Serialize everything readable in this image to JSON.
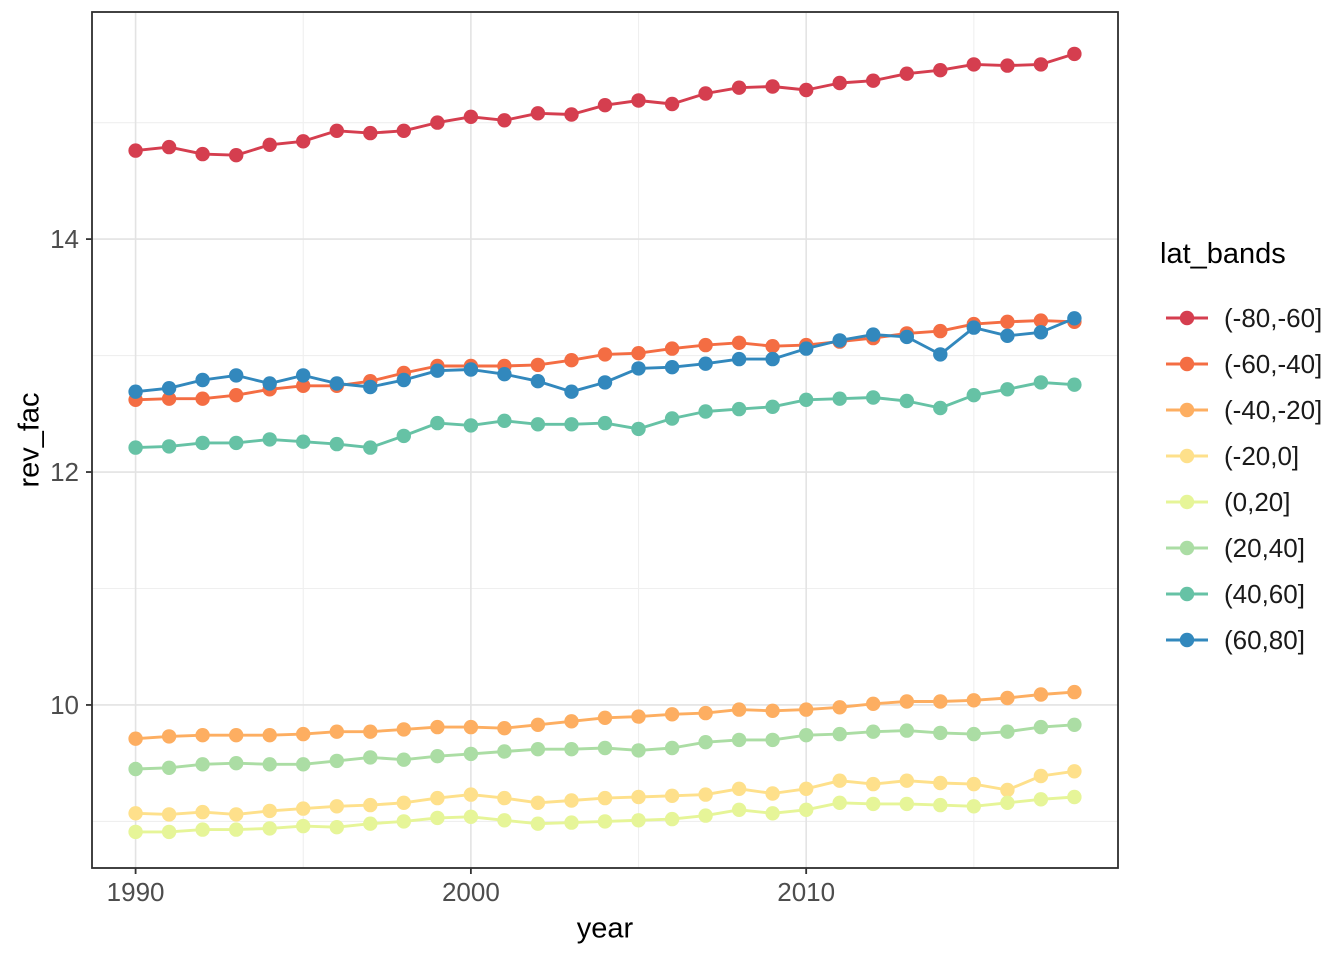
{
  "axes": {
    "x": {
      "title": "year",
      "major_ticks": [
        1990,
        2000,
        2010
      ],
      "minor_ticks": [
        1995,
        2005,
        2015
      ]
    },
    "y": {
      "major_ticks": [
        10,
        12,
        14
      ],
      "minor_ticks": [
        9,
        11,
        13,
        15
      ],
      "title": "rev_fac"
    }
  },
  "chart_data": {
    "type": "line",
    "title": "",
    "xlabel": "year",
    "ylabel": "rev_fac",
    "legend_title": "lat_bands",
    "legend_position": "right",
    "grid": true,
    "xlim": [
      1988.7,
      2019.3
    ],
    "ylim": [
      8.6,
      15.95
    ],
    "x": [
      1990,
      1991,
      1992,
      1993,
      1994,
      1995,
      1996,
      1997,
      1998,
      1999,
      2000,
      2001,
      2002,
      2003,
      2004,
      2005,
      2006,
      2007,
      2008,
      2009,
      2010,
      2011,
      2012,
      2013,
      2014,
      2015,
      2016,
      2017,
      2018
    ],
    "series": [
      {
        "name": "(-80,-60]",
        "color": "#D53E4F",
        "values": [
          14.76,
          14.79,
          14.73,
          14.72,
          14.81,
          14.84,
          14.93,
          14.91,
          14.93,
          15.0,
          15.05,
          15.02,
          15.08,
          15.07,
          15.15,
          15.19,
          15.16,
          15.25,
          15.3,
          15.31,
          15.28,
          15.34,
          15.36,
          15.42,
          15.45,
          15.5,
          15.49,
          15.5,
          15.59
        ]
      },
      {
        "name": "(-60,-40]",
        "color": "#F46D43",
        "values": [
          12.62,
          12.63,
          12.63,
          12.66,
          12.71,
          12.74,
          12.74,
          12.78,
          12.85,
          12.91,
          12.91,
          12.91,
          12.92,
          12.96,
          13.01,
          13.02,
          13.06,
          13.09,
          13.11,
          13.08,
          13.09,
          13.12,
          13.15,
          13.19,
          13.21,
          13.27,
          13.29,
          13.3,
          13.29
        ]
      },
      {
        "name": "(-40,-20]",
        "color": "#FDAE61",
        "values": [
          9.71,
          9.73,
          9.74,
          9.74,
          9.74,
          9.75,
          9.77,
          9.77,
          9.79,
          9.81,
          9.81,
          9.8,
          9.83,
          9.86,
          9.89,
          9.9,
          9.92,
          9.93,
          9.96,
          9.95,
          9.96,
          9.98,
          10.01,
          10.03,
          10.03,
          10.04,
          10.06,
          10.09,
          10.11
        ]
      },
      {
        "name": "(-20,0]",
        "color": "#FEE08B",
        "values": [
          9.07,
          9.06,
          9.08,
          9.06,
          9.09,
          9.11,
          9.13,
          9.14,
          9.16,
          9.2,
          9.23,
          9.2,
          9.16,
          9.18,
          9.2,
          9.21,
          9.22,
          9.23,
          9.28,
          9.24,
          9.28,
          9.35,
          9.32,
          9.35,
          9.33,
          9.32,
          9.27,
          9.39,
          9.43
        ]
      },
      {
        "name": "(0,20]",
        "color": "#E6F598",
        "values": [
          8.91,
          8.91,
          8.93,
          8.93,
          8.94,
          8.96,
          8.95,
          8.98,
          9.0,
          9.03,
          9.04,
          9.01,
          8.98,
          8.99,
          9.0,
          9.01,
          9.02,
          9.05,
          9.1,
          9.07,
          9.1,
          9.16,
          9.15,
          9.15,
          9.14,
          9.13,
          9.16,
          9.19,
          9.21
        ]
      },
      {
        "name": "(20,40]",
        "color": "#ABDDA4",
        "values": [
          9.45,
          9.46,
          9.49,
          9.5,
          9.49,
          9.49,
          9.52,
          9.55,
          9.53,
          9.56,
          9.58,
          9.6,
          9.62,
          9.62,
          9.63,
          9.61,
          9.63,
          9.68,
          9.7,
          9.7,
          9.74,
          9.75,
          9.77,
          9.78,
          9.76,
          9.75,
          9.77,
          9.81,
          9.83
        ]
      },
      {
        "name": "(40,60]",
        "color": "#66C2A5",
        "values": [
          12.21,
          12.22,
          12.25,
          12.25,
          12.28,
          12.26,
          12.24,
          12.21,
          12.31,
          12.42,
          12.4,
          12.44,
          12.41,
          12.41,
          12.42,
          12.37,
          12.46,
          12.52,
          12.54,
          12.56,
          12.62,
          12.63,
          12.64,
          12.61,
          12.55,
          12.66,
          12.71,
          12.77,
          12.75
        ]
      },
      {
        "name": "(60,80]",
        "color": "#3288BD",
        "values": [
          12.69,
          12.72,
          12.79,
          12.83,
          12.76,
          12.83,
          12.76,
          12.73,
          12.79,
          12.87,
          12.88,
          12.84,
          12.78,
          12.69,
          12.77,
          12.89,
          12.9,
          12.93,
          12.97,
          12.97,
          13.06,
          13.13,
          13.18,
          13.16,
          13.01,
          13.24,
          13.17,
          13.2,
          13.32
        ]
      }
    ]
  }
}
